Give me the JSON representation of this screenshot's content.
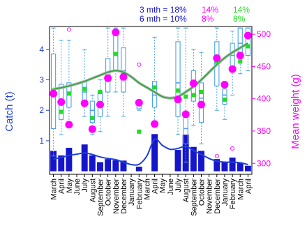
{
  "chart_data": {
    "type": "bar",
    "ylabel": "Catch (t)",
    "y2label": "Mean weight (g)",
    "ylim": [
      -0.1,
      4.75
    ],
    "y2lim": [
      283,
      512
    ],
    "yticks": [
      1,
      2,
      3,
      4
    ],
    "y2ticks": [
      300,
      350,
      400,
      450,
      500
    ],
    "annotations": {
      "line1_label": "3 mth = 18%",
      "line2_label": "6 mth = 10%",
      "col2_row1": "14%",
      "col2_row2": "8%",
      "col3_row1": "14%",
      "col3_row2": "8%"
    },
    "colors": {
      "axis": "#1f3fd8",
      "catch_bar": "#1515cc",
      "box": "#4aa3e6",
      "mean_weight": "#ff00ff",
      "green_point": "#22dd22",
      "smooth_line": "#2ea83a",
      "catch_line": "#1f3fd8"
    },
    "categories": [
      "March",
      "April",
      "May",
      "June",
      "July",
      "August",
      "September",
      "October",
      "November",
      "December",
      "January",
      "February",
      "March",
      "April",
      "May",
      "June",
      "July",
      "August",
      "September",
      "October",
      "November",
      "December",
      "January",
      "February",
      "March",
      "April"
    ],
    "catch": [
      0.67,
      0.52,
      0.77,
      0.0,
      0.88,
      0.52,
      0.3,
      0.4,
      0.36,
      0.35,
      0.0,
      0.15,
      0.0,
      1.22,
      0.0,
      0.0,
      0.7,
      1.2,
      0.8,
      0.67,
      0.0,
      0.4,
      0.3,
      0.45,
      0.28,
      0.18
    ],
    "catch_smooth": [
      0.4,
      0.45,
      0.52,
      0.56,
      0.6,
      0.55,
      0.47,
      0.42,
      0.38,
      0.3,
      0.22,
      0.23,
      0.5,
      1.05,
      0.85,
      0.72,
      0.75,
      0.82,
      0.68,
      0.55,
      0.42,
      0.33,
      0.3,
      0.3,
      0.28,
      0.22
    ],
    "boxes": [
      {
        "q1": 1.4,
        "med": 2.5,
        "q3": 3.85,
        "lo": 0.5,
        "hi": 4.7
      },
      {
        "q1": 1.7,
        "med": 2.3,
        "q3": 2.85,
        "lo": 1.2,
        "hi": 4.3
      },
      {
        "q1": 2.1,
        "med": 2.5,
        "q3": 2.9,
        "lo": 1.5,
        "hi": 4.3
      },
      null,
      {
        "q1": 2.3,
        "med": 2.6,
        "q3": 2.95,
        "lo": 1.8,
        "hi": 4.0
      },
      {
        "q1": 1.6,
        "med": 2.0,
        "q3": 2.3,
        "lo": 1.2,
        "hi": 2.5
      },
      {
        "q1": 1.8,
        "med": 2.2,
        "q3": 2.6,
        "lo": 1.3,
        "hi": 3.0
      },
      {
        "q1": 2.6,
        "med": 3.1,
        "q3": 3.7,
        "lo": 1.8,
        "hi": 4.7
      },
      {
        "q1": 3.3,
        "med": 3.8,
        "q3": 4.6,
        "lo": 2.6,
        "hi": 4.7
      },
      {
        "q1": 2.6,
        "med": 3.3,
        "q3": 4.05,
        "lo": 1.8,
        "hi": 4.7
      },
      null,
      {
        "q1": 2.05,
        "med": 2.15,
        "q3": 2.25,
        "lo": 2.0,
        "hi": 2.3
      },
      null,
      {
        "q1": 2.1,
        "med": 2.5,
        "q3": 2.95,
        "lo": 1.5,
        "hi": 4.4
      },
      null,
      null,
      {
        "q1": 1.8,
        "med": 2.9,
        "q3": 4.25,
        "lo": 1.2,
        "hi": 4.7
      },
      {
        "q1": 0.9,
        "med": 1.4,
        "q3": 1.9,
        "lo": 0.3,
        "hi": 4.7
      },
      {
        "q1": 2.3,
        "med": 2.9,
        "q3": 3.3,
        "lo": 1.5,
        "hi": 4.0
      },
      {
        "q1": 1.6,
        "med": 2.4,
        "q3": 2.9,
        "lo": 0.9,
        "hi": 3.9
      },
      null,
      {
        "q1": 2.8,
        "med": 3.6,
        "q3": 4.25,
        "lo": 2.0,
        "hi": 4.7
      },
      {
        "q1": 2.2,
        "med": 2.5,
        "q3": 2.7,
        "lo": 1.7,
        "hi": 2.9
      },
      {
        "q1": 3.4,
        "med": 3.8,
        "q3": 4.2,
        "lo": 2.5,
        "hi": 4.6
      },
      {
        "q1": 3.7,
        "med": 4.2,
        "q3": 4.7,
        "lo": 3.2,
        "hi": 4.7
      },
      {
        "q1": 3.8,
        "med": 4.4,
        "q3": 4.7,
        "lo": 3.3,
        "hi": 4.7
      }
    ],
    "outliers": [
      {
        "i": 2,
        "y": 4.65
      },
      {
        "i": 11,
        "y": 3.5
      },
      {
        "i": 21,
        "y": 0.5
      },
      {
        "i": 23,
        "y": 0.75
      }
    ],
    "mean_weight": [
      408,
      395,
      360,
      0,
      393,
      353,
      391,
      432,
      503,
      434,
      0,
      394,
      0,
      361,
      0,
      0,
      399,
      376,
      424,
      391,
      0,
      463,
      422,
      446,
      467,
      498
    ],
    "green_points": [
      2.65,
      1.95,
      2.55,
      0,
      2.7,
      1.75,
      2.6,
      3.1,
      3.85,
      3.05,
      0,
      1.3,
      0,
      2.75,
      0,
      0,
      2.65,
      2.45,
      2.5,
      2.6,
      0,
      3.6,
      2.35,
      3.35,
      3.6,
      4.1
    ],
    "smooth_line": [
      2.7,
      2.74,
      2.8,
      2.87,
      2.95,
      3.05,
      3.15,
      3.25,
      3.3,
      3.25,
      3.1,
      2.9,
      2.75,
      2.6,
      2.45,
      2.4,
      2.45,
      2.6,
      2.78,
      3.0,
      3.25,
      3.5,
      3.72,
      3.9,
      4.05,
      4.2
    ]
  }
}
